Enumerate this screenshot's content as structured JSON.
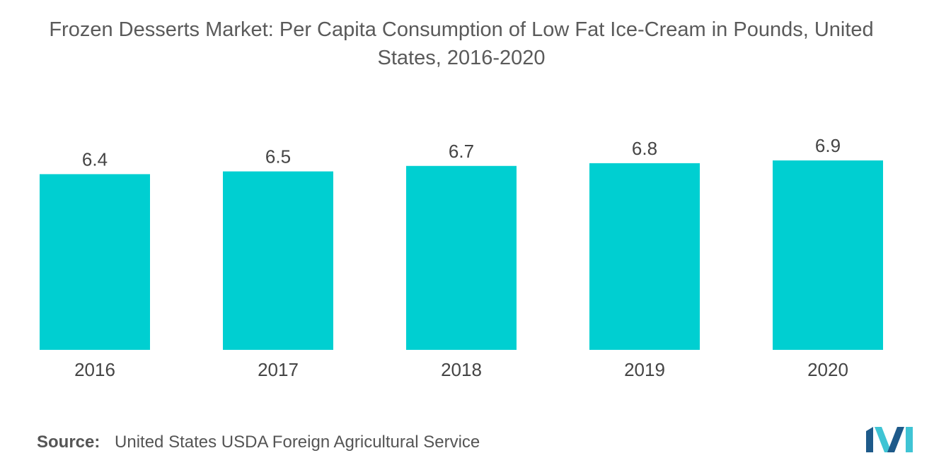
{
  "chart_data": {
    "type": "bar",
    "title_lines": [
      "Frozen Desserts Market: Per Capita Consumption of Low Fat Ice-Cream in Pounds, United",
      "States, 2016-2020"
    ],
    "title": "Frozen Desserts Market: Per Capita Consumption of Low Fat Ice-Cream in Pounds, United States, 2016-2020",
    "categories": [
      "2016",
      "2017",
      "2018",
      "2019",
      "2020"
    ],
    "values": [
      6.4,
      6.5,
      6.7,
      6.8,
      6.9
    ],
    "data_labels": [
      "6.4",
      "6.5",
      "6.7",
      "6.8",
      "6.9"
    ],
    "xlabel": "",
    "ylabel": "",
    "ylim": [
      0,
      6.9
    ],
    "grid": false,
    "legend": "none",
    "bar_color": "#00cfd1"
  },
  "source": {
    "label": "Source:",
    "text": "United States USDA Foreign Agricultural Service"
  },
  "colors": {
    "title": "#5a5a5a",
    "text": "#444444",
    "axis": "#555555",
    "logo_dark": "#1e5a8a",
    "logo_light": "#3fc4d4"
  },
  "logo": {
    "icon": "mordor-intelligence-logo-icon"
  }
}
